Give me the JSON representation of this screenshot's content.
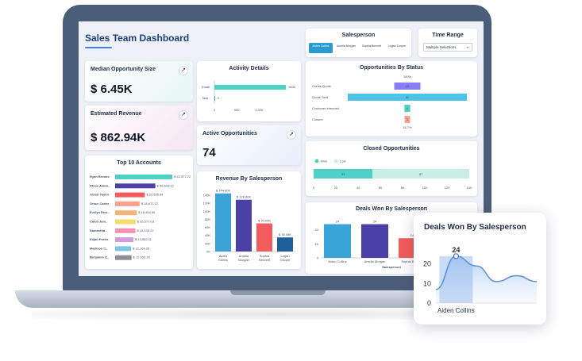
{
  "dashboard": {
    "title": "Sales Team Dashboard"
  },
  "salesperson": {
    "title": "Salesperson",
    "tabs": [
      {
        "label": "Aiden Collins",
        "active": true
      },
      {
        "label": "Amelia Morgan",
        "active": false
      },
      {
        "label": "Sophia Bennett",
        "active": false
      },
      {
        "label": "Logan Cooper",
        "active": false
      }
    ]
  },
  "time_range": {
    "title": "Time Range",
    "selected": "Multiple Selections"
  },
  "kpis": {
    "median_opportunity": {
      "label": "Median Opportunity Size",
      "value": "$ 6.45K"
    },
    "estimated_revenue": {
      "label": "Estimated Revenue",
      "value": "$ 862.94K"
    },
    "active_opportunities": {
      "label": "Active Opportunities",
      "value": "74"
    }
  },
  "colors": {
    "teal": "#4fd1c5",
    "blue": "#3aa3d8",
    "indigo": "#4b3fa8",
    "coral": "#f25c5c",
    "navy": "#1f5f9e",
    "violet": "#8a7cf5",
    "salmon": "#f5a38f",
    "lightteal": "#c8eee6"
  },
  "chart_data": [
    {
      "id": "top10",
      "type": "bar",
      "title": "Top 10 Accounts",
      "orientation": "horizontal",
      "categories": [
        "Ryan Brooks",
        "Chloe Adam..",
        "Jacob Taylor",
        "Grace Carter",
        "Evelyn Rive..",
        "Caleb Jam..",
        "Samantha ..",
        "Elijah Porter",
        "Madison C..",
        "Benjamin C.."
      ],
      "values": [
        43577,
        30642,
        22635,
        18672,
        16454,
        15577,
        15433,
        13952,
        12164,
        12503
      ],
      "value_labels": [
        "$ 43,577.22",
        "$ 30,642.12",
        "$ 22,635.84",
        "$ 18,672.72",
        "$ 16,454.06",
        "$ 15,577.03",
        "$ 15,433.22",
        "$ 13,952.11",
        "$ 12,164.35",
        "$ 12,503.24"
      ],
      "colors": [
        "#4fd1c5",
        "#4b3fa8",
        "#f25c5c",
        "#f5a38f",
        "#f7b27a",
        "#f7dc6f",
        "#f78fb3",
        "#d59be0",
        "#7cc6e8",
        "#8a8f99"
      ]
    },
    {
      "id": "activity",
      "type": "bar",
      "title": "Activity Details",
      "orientation": "horizontal",
      "categories": [
        "Email",
        "Task"
      ],
      "values": [
        1600,
        2
      ],
      "value_labels": [
        "1600",
        "2"
      ],
      "xticks": [
        "0",
        "500",
        "1,000"
      ],
      "xlim": [
        0,
        1600
      ]
    },
    {
      "id": "revenue",
      "type": "bar",
      "title": "Revenue By Salesperson",
      "categories": [
        "Aiden Collins",
        "Amelia Morgan",
        "Sophia Bennett",
        "Logan Cooper"
      ],
      "values": [
        144600,
        128800,
        70040,
        35080
      ],
      "value_labels": [
        "$ 144.60K",
        "$ 128.80K",
        "$ 70.04K",
        "$ 35.08K"
      ],
      "yticks": [
        "0K",
        "20K",
        "40K",
        "60K",
        "80K",
        "100K",
        "120K",
        "140K"
      ],
      "ylim": [
        0,
        150000
      ],
      "colors": [
        "#3aa3d8",
        "#4b3fa8",
        "#f25c5c",
        "#1f5f9e"
      ]
    },
    {
      "id": "status",
      "type": "bar",
      "title": "Opportunities By Status",
      "orientation": "horizontal",
      "categories": [
        "Create Quote",
        "Quote Sent",
        "Customer Intended",
        "Closure"
      ],
      "values": [
        18,
        82,
        4,
        3
      ],
      "value_labels": [
        "18",
        "82",
        "4",
        "3"
      ],
      "top_label": "100%",
      "bottom_label": "16.7%",
      "colors": [
        "#8a7cf5",
        "#4fc3e6",
        "#4fd1c5",
        "#f5a38f"
      ]
    },
    {
      "id": "closed",
      "type": "bar",
      "title": "Closed Opportunities",
      "orientation": "horizontal",
      "stacked": true,
      "series": [
        {
          "name": "Won",
          "values": [
            53
          ],
          "label": "53"
        },
        {
          "name": "Lost",
          "values": [
            87
          ],
          "label": "87"
        }
      ],
      "xticks": [
        "0",
        "20",
        "40",
        "60",
        "80",
        "100",
        "120",
        "140"
      ],
      "xlim": [
        0,
        140
      ]
    },
    {
      "id": "deals",
      "type": "bar",
      "title": "Deals Won By Salesperson",
      "categories": [
        "Aiden Collins",
        "Amelia Morgan",
        "Sophia Bennett"
      ],
      "values": [
        24,
        24,
        14
      ],
      "value_labels": [
        "24",
        "24",
        "14"
      ],
      "yticks": [
        "0",
        "10",
        "20"
      ],
      "ylim": [
        0,
        26
      ],
      "xlabel": "Salesperson",
      "colors": [
        "#3aa3d8",
        "#4b3fa8",
        "#f25c5c"
      ]
    },
    {
      "id": "popup",
      "type": "area",
      "title": "Deals Won By Salesperson",
      "highlight_category": "Aiden Collins",
      "highlight_value": "24",
      "yticks": [
        "0",
        "10",
        "20"
      ],
      "ylim": [
        0,
        30
      ],
      "x": [
        0,
        1,
        2,
        3,
        4,
        5
      ],
      "y": [
        7,
        24,
        19,
        11,
        14,
        11
      ]
    }
  ]
}
